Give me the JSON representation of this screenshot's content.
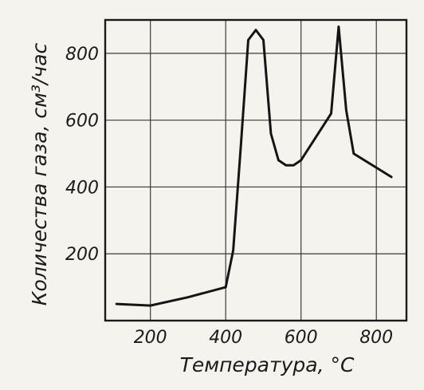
{
  "chart_data": {
    "type": "line",
    "xlabel": "Температура, °С",
    "ylabel": "Количества газа, см³/час",
    "xlim": [
      80,
      880
    ],
    "ylim": [
      0,
      900
    ],
    "xticks": [
      200,
      400,
      600,
      800
    ],
    "yticks": [
      200,
      400,
      600,
      800
    ],
    "xtick_labels": [
      "200",
      "400",
      "600",
      "800"
    ],
    "ytick_labels": [
      "200",
      "400",
      "600",
      "800"
    ],
    "grid": true,
    "series": [
      {
        "x": [
          110,
          200,
          300,
          400,
          420,
          440,
          460,
          480,
          500,
          520,
          540,
          560,
          580,
          600,
          640,
          680,
          700,
          720,
          740,
          840
        ],
        "y": [
          50,
          45,
          70,
          100,
          210,
          520,
          840,
          870,
          840,
          560,
          480,
          465,
          465,
          480,
          550,
          620,
          880,
          630,
          500,
          430
        ]
      }
    ]
  }
}
